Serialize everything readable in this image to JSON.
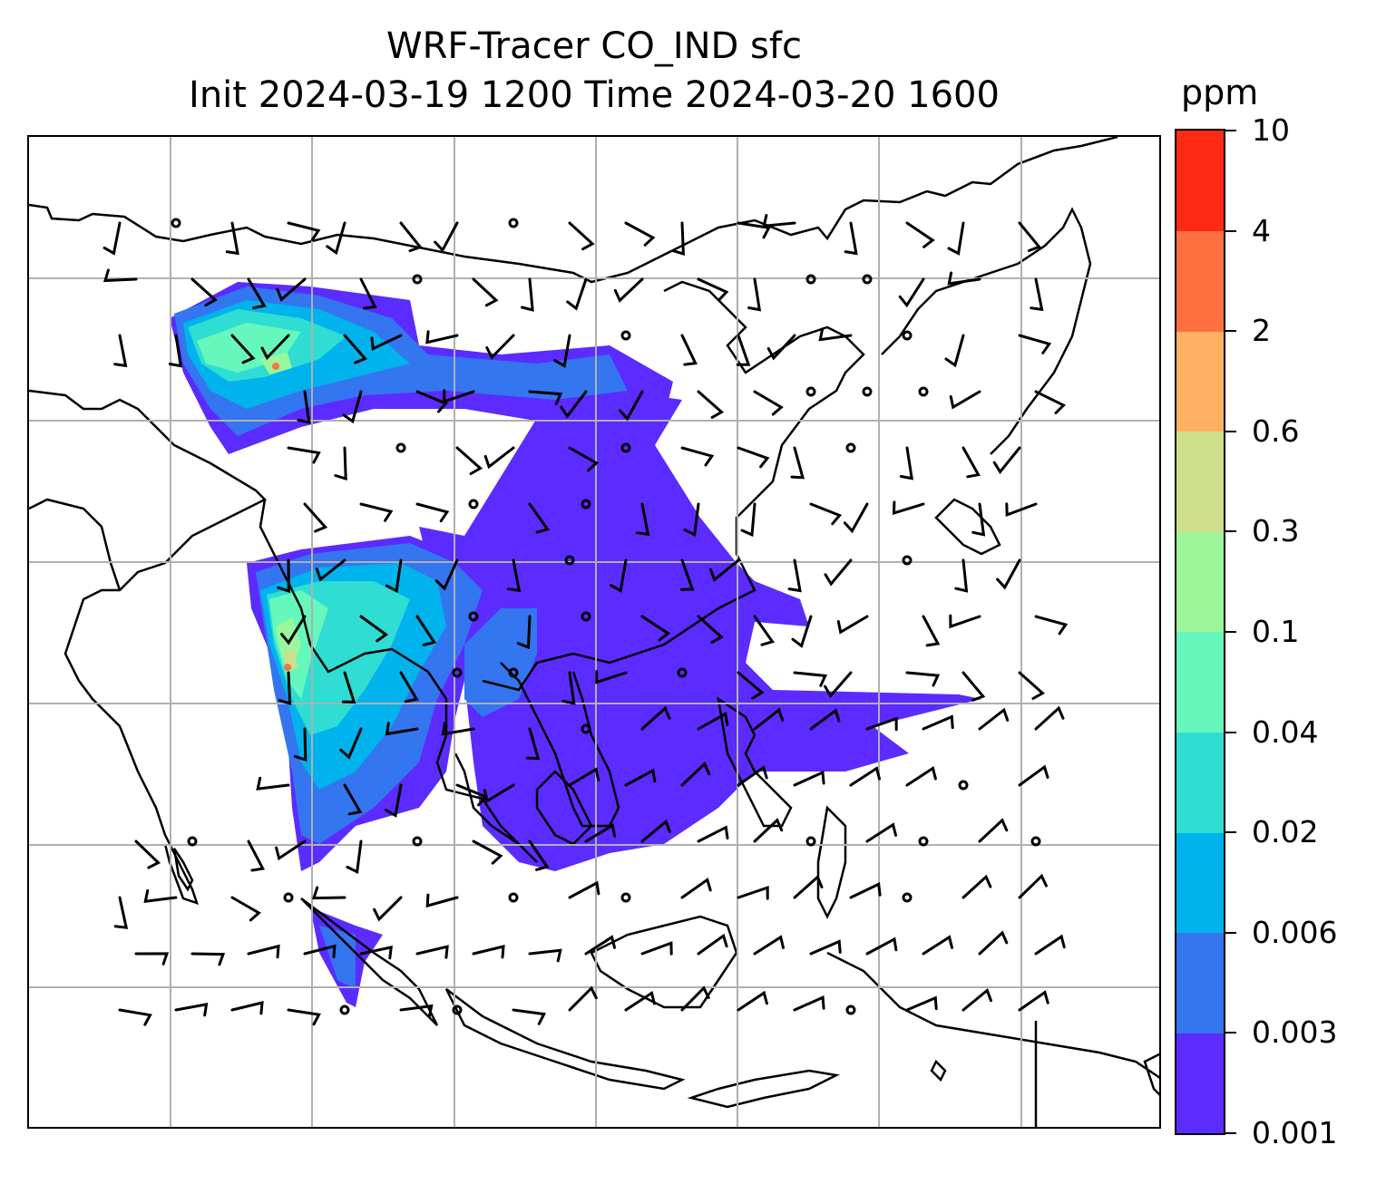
{
  "title": {
    "line1": "WRF-Tracer CO_IND sfc",
    "line2": "Init 2024-03-19 1200 Time 2024-03-20 1600"
  },
  "colorbar": {
    "unit": "ppm",
    "levels": [
      "0.001",
      "0.003",
      "0.006",
      "0.02",
      "0.04",
      "0.1",
      "0.3",
      "0.6",
      "2",
      "4",
      "10"
    ],
    "colors": [
      "#5b2bff",
      "#3475f0",
      "#00b3ec",
      "#2fddd2",
      "#66f7bc",
      "#9bf69a",
      "#cddf8a",
      "#ffb060",
      "#ff7040",
      "#ff2a16"
    ]
  },
  "map": {
    "region": "South and Southeast Asia",
    "gridlines": true,
    "overlay": "wind-barbs",
    "coastline_color": "#000000"
  }
}
